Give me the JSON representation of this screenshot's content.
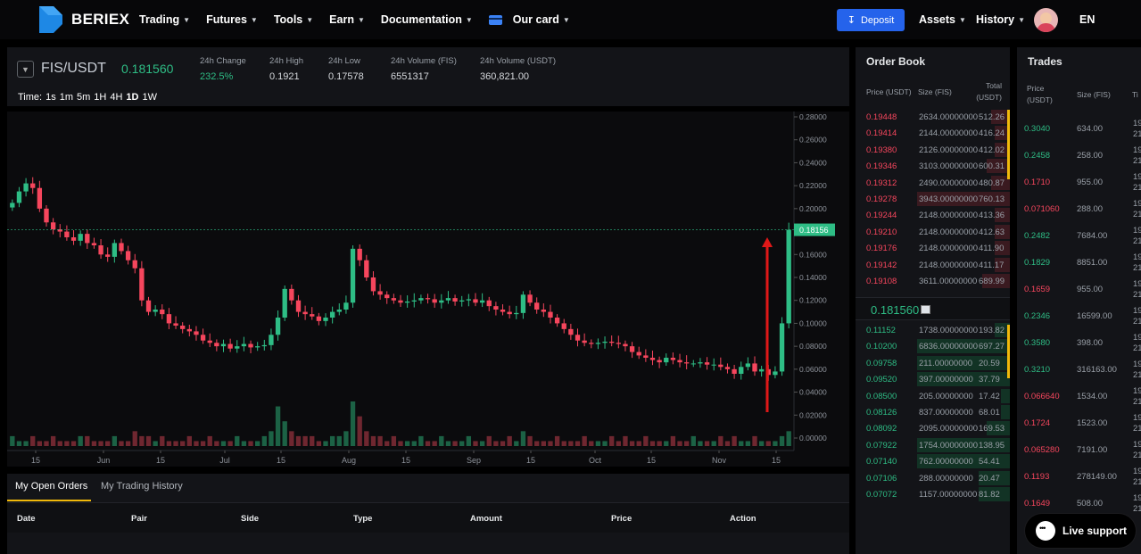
{
  "brand": {
    "name": "BERIEX"
  },
  "nav": {
    "items": [
      {
        "label": "Trading"
      },
      {
        "label": "Futures"
      },
      {
        "label": "Tools"
      },
      {
        "label": "Earn"
      },
      {
        "label": "Documentation"
      },
      {
        "label": "Our card"
      }
    ],
    "deposit_label": "Deposit",
    "assets_label": "Assets",
    "history_label": "History",
    "language": "EN"
  },
  "ticker": {
    "pair": "FIS/USDT",
    "price": "0.181560",
    "stats": [
      {
        "label": "24h Change",
        "value": "232.5%"
      },
      {
        "label": "24h High",
        "value": "0.1921"
      },
      {
        "label": "24h Low",
        "value": "0.17578"
      },
      {
        "label": "24h Volume (FIS)",
        "value": "6551317"
      },
      {
        "label": "24h Volume (USDT)",
        "value": "360,821.00"
      }
    ],
    "time_label": "Time:",
    "intervals": [
      "1s",
      "1m",
      "5m",
      "1H",
      "4H",
      "1D",
      "1W"
    ]
  },
  "chart_data": {
    "type": "line",
    "x_tick_labels": [
      "15",
      "Jun",
      "15",
      "Jul",
      "15",
      "Aug",
      "15",
      "Sep",
      "15",
      "Oct",
      "15",
      "Nov",
      "15"
    ],
    "y_tick_labels": [
      "0.28000",
      "0.26000",
      "0.24000",
      "0.22000",
      "0.20000",
      "0.18000",
      "0.16000",
      "0.14000",
      "0.12000",
      "0.10000",
      "0.08000",
      "0.06000",
      "0.04000",
      "0.02000",
      "0.00000"
    ],
    "ylim": [
      0,
      0.28
    ],
    "current_price_label": "0.18156",
    "current_price": 0.18156,
    "close_series": [
      0.205,
      0.215,
      0.222,
      0.218,
      0.2,
      0.188,
      0.182,
      0.18,
      0.175,
      0.172,
      0.178,
      0.17,
      0.168,
      0.16,
      0.158,
      0.17,
      0.163,
      0.155,
      0.148,
      0.12,
      0.11,
      0.112,
      0.108,
      0.1,
      0.098,
      0.095,
      0.093,
      0.09,
      0.085,
      0.083,
      0.08,
      0.082,
      0.078,
      0.08,
      0.082,
      0.079,
      0.08,
      0.081,
      0.09,
      0.105,
      0.13,
      0.12,
      0.11,
      0.108,
      0.106,
      0.102,
      0.105,
      0.11,
      0.112,
      0.118,
      0.165,
      0.155,
      0.14,
      0.128,
      0.125,
      0.122,
      0.12,
      0.118,
      0.119,
      0.12,
      0.122,
      0.121,
      0.118,
      0.12,
      0.122,
      0.119,
      0.12,
      0.121,
      0.118,
      0.12,
      0.115,
      0.112,
      0.11,
      0.108,
      0.109,
      0.125,
      0.118,
      0.112,
      0.11,
      0.105,
      0.1,
      0.095,
      0.09,
      0.085,
      0.083,
      0.082,
      0.083,
      0.084,
      0.083,
      0.082,
      0.08,
      0.075,
      0.072,
      0.07,
      0.068,
      0.066,
      0.07,
      0.068,
      0.066,
      0.065,
      0.065,
      0.066,
      0.064,
      0.064,
      0.062,
      0.06,
      0.056,
      0.062,
      0.065,
      0.058,
      0.06,
      0.055,
      0.058,
      0.1,
      0.18156
    ],
    "volume_series": [
      2,
      1,
      1,
      2,
      1,
      1,
      2,
      1,
      1,
      1,
      2,
      2,
      1,
      1,
      1,
      2,
      1,
      1,
      3,
      2,
      2,
      1,
      2,
      1,
      1,
      1,
      2,
      1,
      1,
      2,
      1,
      1,
      1,
      2,
      1,
      1,
      1,
      2,
      3,
      8,
      5,
      3,
      2,
      2,
      2,
      1,
      1,
      2,
      2,
      3,
      9,
      6,
      3,
      2,
      2,
      1,
      2,
      1,
      1,
      1,
      2,
      1,
      1,
      2,
      1,
      1,
      1,
      2,
      1,
      1,
      2,
      1,
      1,
      2,
      1,
      3,
      2,
      1,
      1,
      1,
      2,
      1,
      1,
      1,
      2,
      1,
      1,
      1,
      2,
      1,
      2,
      1,
      1,
      2,
      1,
      1,
      1,
      2,
      1,
      1,
      2,
      1,
      1,
      1,
      2,
      1,
      2,
      1,
      1,
      2,
      1,
      1,
      1,
      2,
      3
    ]
  },
  "orders_panel": {
    "tabs": [
      "My Open Orders",
      "My Trading History"
    ],
    "columns": [
      "Date",
      "Pair",
      "Side",
      "Type",
      "Amount",
      "Price",
      "Action"
    ]
  },
  "order_book": {
    "title": "Order Book",
    "headers": {
      "price": "Price (USDT)",
      "size": "Size (FIS)",
      "total": "Total (USDT)"
    },
    "asks": [
      {
        "price": "0.19448",
        "size": "2634.00000000",
        "total": "512.26",
        "depth": 0.12
      },
      {
        "price": "0.19414",
        "size": "2144.00000000",
        "total": "416.24",
        "depth": 0.1
      },
      {
        "price": "0.19380",
        "size": "2126.00000000",
        "total": "412.02",
        "depth": 0.1
      },
      {
        "price": "0.19346",
        "size": "3103.00000000",
        "total": "600.31",
        "depth": 0.15
      },
      {
        "price": "0.19312",
        "size": "2490.00000000",
        "total": "480.87",
        "depth": 0.12
      },
      {
        "price": "0.19278",
        "size": "3943.00000000",
        "total": "760.13",
        "depth": 0.6
      },
      {
        "price": "0.19244",
        "size": "2148.00000000",
        "total": "413.36",
        "depth": 0.1
      },
      {
        "price": "0.19210",
        "size": "2148.00000000",
        "total": "412.63",
        "depth": 0.1
      },
      {
        "price": "0.19176",
        "size": "2148.00000000",
        "total": "411.90",
        "depth": 0.1
      },
      {
        "price": "0.19142",
        "size": "2148.00000000",
        "total": "411.17",
        "depth": 0.1
      },
      {
        "price": "0.19108",
        "size": "3611.00000000",
        "total": "689.99",
        "depth": 0.18
      }
    ],
    "mid_price": "0.181560",
    "bids": [
      {
        "price": "0.11152",
        "size": "1738.00000000",
        "total": "193.82",
        "depth": 0.1
      },
      {
        "price": "0.10200",
        "size": "6836.00000000",
        "total": "697.27",
        "depth": 0.6
      },
      {
        "price": "0.09758",
        "size": "211.00000000",
        "total": "20.59",
        "depth": 0.6
      },
      {
        "price": "0.09520",
        "size": "397.00000000",
        "total": "37.79",
        "depth": 0.6
      },
      {
        "price": "0.08500",
        "size": "205.00000000",
        "total": "17.42",
        "depth": 0.06
      },
      {
        "price": "0.08126",
        "size": "837.00000000",
        "total": "68.01",
        "depth": 0.06
      },
      {
        "price": "0.08092",
        "size": "2095.00000000",
        "total": "169.53",
        "depth": 0.15
      },
      {
        "price": "0.07922",
        "size": "1754.00000000",
        "total": "138.95",
        "depth": 0.6
      },
      {
        "price": "0.07140",
        "size": "762.00000000",
        "total": "54.41",
        "depth": 0.6
      },
      {
        "price": "0.07106",
        "size": "288.00000000",
        "total": "20.47",
        "depth": 0.2
      },
      {
        "price": "0.07072",
        "size": "1157.00000000",
        "total": "81.82",
        "depth": 0.2
      }
    ]
  },
  "trades": {
    "title": "Trades",
    "headers": {
      "price": "Price (USDT)",
      "size": "Size (FIS)",
      "time": "Ti"
    },
    "rows": [
      {
        "price": "0.3040",
        "size": "634.00",
        "side": "buy",
        "time_top": "19",
        "time_bot": "21"
      },
      {
        "price": "0.2458",
        "size": "258.00",
        "side": "buy",
        "time_top": "19",
        "time_bot": "21"
      },
      {
        "price": "0.1710",
        "size": "955.00",
        "side": "sell",
        "time_top": "19",
        "time_bot": "21"
      },
      {
        "price": "0.071060",
        "size": "288.00",
        "side": "sell",
        "time_top": "19",
        "time_bot": "21"
      },
      {
        "price": "0.2482",
        "size": "7684.00",
        "side": "buy",
        "time_top": "19",
        "time_bot": "21"
      },
      {
        "price": "0.1829",
        "size": "8851.00",
        "side": "buy",
        "time_top": "19",
        "time_bot": "21"
      },
      {
        "price": "0.1659",
        "size": "955.00",
        "side": "sell",
        "time_top": "19",
        "time_bot": "21"
      },
      {
        "price": "0.2346",
        "size": "16599.00",
        "side": "buy",
        "time_top": "19",
        "time_bot": "21"
      },
      {
        "price": "0.3580",
        "size": "398.00",
        "side": "buy",
        "time_top": "19",
        "time_bot": "21"
      },
      {
        "price": "0.3210",
        "size": "316163.00",
        "side": "buy",
        "time_top": "19",
        "time_bot": "21"
      },
      {
        "price": "0.066640",
        "size": "1534.00",
        "side": "sell",
        "time_top": "19",
        "time_bot": "21"
      },
      {
        "price": "0.1724",
        "size": "1523.00",
        "side": "sell",
        "time_top": "19",
        "time_bot": "21"
      },
      {
        "price": "0.065280",
        "size": "7191.00",
        "side": "sell",
        "time_top": "19",
        "time_bot": "21"
      },
      {
        "price": "0.1193",
        "size": "278149.00",
        "side": "sell",
        "time_top": "19",
        "time_bot": "21"
      },
      {
        "price": "0.1649",
        "size": "508.00",
        "side": "sell",
        "time_top": "19",
        "time_bot": "21"
      }
    ]
  },
  "live_support": {
    "label": "Live support"
  },
  "colors": {
    "up": "#2ebd85",
    "down": "#f6465d",
    "accent": "#2563eb",
    "highlight": "#f0b90b"
  }
}
